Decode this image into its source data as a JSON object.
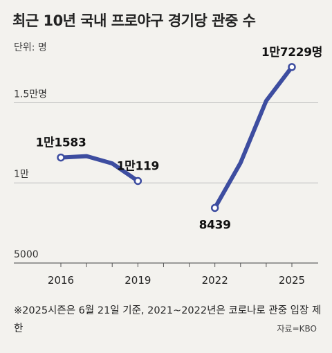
{
  "title": "최근 10년 국내 프로야구 경기당 관중 수",
  "unit_label": "단위: 명",
  "footnote": "※2025시즌은 6월 21일 기준, 2021~2022년은 코로나로 관중 입장 제한",
  "source": "자료=KBO",
  "colors": {
    "line": "#3d4da0",
    "grid": "#bdbdbd",
    "background": "#f3f2ee"
  },
  "chart_data": {
    "type": "line",
    "x": [
      2016,
      2017,
      2018,
      2019,
      2020,
      2021,
      2022,
      2023,
      2024,
      2025
    ],
    "series": [
      {
        "segments": [
          {
            "x": [
              2016,
              2017,
              2018,
              2019
            ],
            "values": [
              11583,
              11668,
              11214,
              10119
            ]
          },
          {
            "x": [
              2022,
              2023,
              2024,
              2025
            ],
            "values": [
              8439,
              11250,
              15122,
              17229
            ]
          }
        ]
      }
    ],
    "ylim": [
      5000,
      18000
    ],
    "y_ticks": [
      {
        "value": 15000,
        "label": "1.5만명"
      },
      {
        "value": 10000,
        "label": "1만"
      },
      {
        "value": 5000,
        "label": "5000"
      }
    ],
    "x_tick_labels": [
      {
        "value": 2016,
        "label": "2016"
      },
      {
        "value": 2019,
        "label": "2019"
      },
      {
        "value": 2022,
        "label": "2022"
      },
      {
        "value": 2025,
        "label": "2025"
      }
    ],
    "data_labels": [
      {
        "x": 2016,
        "value": 11583,
        "label": "1만1583",
        "pos": "above"
      },
      {
        "x": 2019,
        "value": 10119,
        "label": "1만119",
        "pos": "above"
      },
      {
        "x": 2022,
        "value": 8439,
        "label": "8439",
        "pos": "below"
      },
      {
        "x": 2025,
        "value": 17229,
        "label": "1만7229명",
        "pos": "above"
      }
    ],
    "grid": true,
    "markers_at": [
      2016,
      2019,
      2022,
      2025
    ]
  }
}
